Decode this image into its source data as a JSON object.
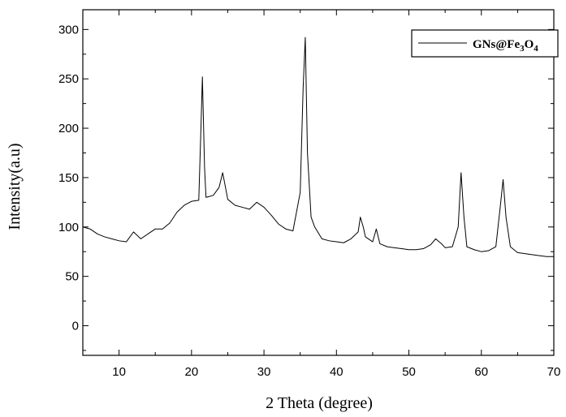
{
  "chart_data": {
    "type": "line",
    "xlabel": "2 Theta (degree)",
    "ylabel": "Intensity(a.u)",
    "xlim": [
      5,
      70
    ],
    "ylim": [
      -30,
      320
    ],
    "x_ticks": [
      10,
      20,
      30,
      40,
      50,
      60,
      70
    ],
    "y_ticks": [
      0,
      50,
      100,
      150,
      200,
      250,
      300
    ],
    "x_tick_labels": [
      "10",
      "20",
      "30",
      "40",
      "50",
      "60",
      "70"
    ],
    "y_tick_labels": [
      "0",
      "50",
      "100",
      "150",
      "200",
      "250",
      "300"
    ],
    "grid": false,
    "legend": {
      "position": "top-right",
      "prefix": "GNs@Fe",
      "sub1": "3",
      "mid": "O",
      "sub2": "4"
    },
    "series": [
      {
        "name": "GNs@Fe3O4",
        "color": "#000000",
        "x": [
          5,
          6,
          7,
          8,
          9,
          10,
          11,
          12,
          13,
          14,
          15,
          16,
          17,
          18,
          19,
          20,
          21,
          21.3,
          21.5,
          21.8,
          22,
          23,
          23.8,
          24.3,
          25,
          26,
          27,
          28,
          29,
          30,
          31,
          32,
          33,
          34,
          35,
          35.4,
          35.7,
          36,
          36.5,
          37,
          38,
          39,
          40,
          41,
          42,
          43,
          43.3,
          43.7,
          44,
          45,
          45.5,
          46,
          47,
          48,
          49,
          50,
          51,
          52,
          53,
          53.7,
          54.5,
          55,
          56,
          56.8,
          57.2,
          57.6,
          58,
          59,
          60,
          61,
          62,
          62.6,
          63,
          63.4,
          64,
          65,
          66,
          67,
          68,
          69,
          70
        ],
        "y": [
          100,
          98,
          93,
          90,
          88,
          86,
          85,
          95,
          88,
          93,
          98,
          98,
          104,
          115,
          122,
          126,
          127,
          200,
          252,
          160,
          130,
          132,
          140,
          155,
          128,
          122,
          120,
          118,
          125,
          120,
          112,
          103,
          98,
          96,
          135,
          240,
          292,
          175,
          110,
          100,
          88,
          86,
          85,
          84,
          88,
          95,
          110,
          100,
          90,
          85,
          98,
          83,
          80,
          79,
          78,
          77,
          77,
          78,
          82,
          88,
          83,
          79,
          80,
          100,
          155,
          110,
          80,
          77,
          75,
          76,
          80,
          120,
          148,
          110,
          80,
          74,
          73,
          72,
          71,
          70,
          70
        ]
      }
    ]
  }
}
